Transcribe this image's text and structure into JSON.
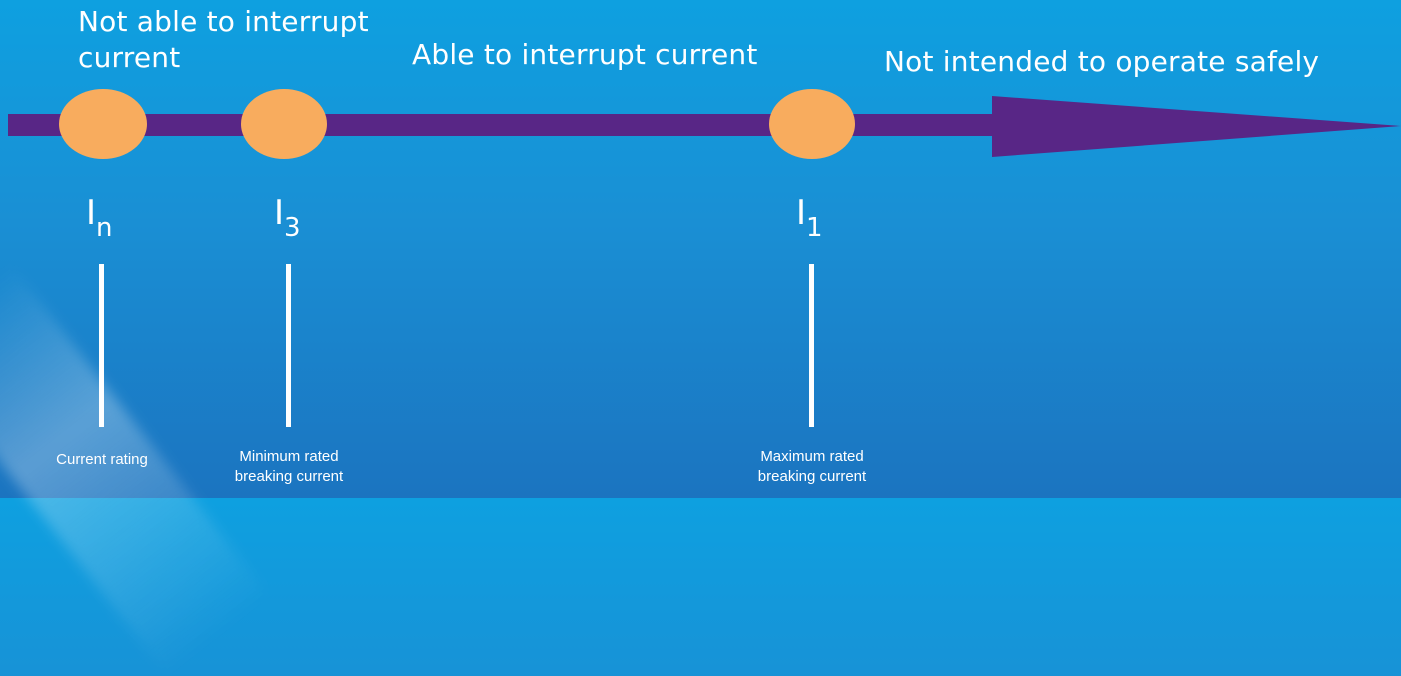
{
  "zones": [
    {
      "label": "Not able to interrupt current"
    },
    {
      "label": "Able to interrupt current"
    },
    {
      "label": "Not intended to operate safely"
    }
  ],
  "points": [
    {
      "symbol": "I",
      "subscript": "n",
      "description": "Current rating"
    },
    {
      "symbol": "I",
      "subscript": "3",
      "description": "Minimum rated breaking current"
    },
    {
      "symbol": "I",
      "subscript": "1",
      "description": "Maximum rated breaking current"
    }
  ],
  "colors": {
    "arrow": "#582686",
    "marker": "#f8ac5e",
    "background": "#1790d6"
  }
}
